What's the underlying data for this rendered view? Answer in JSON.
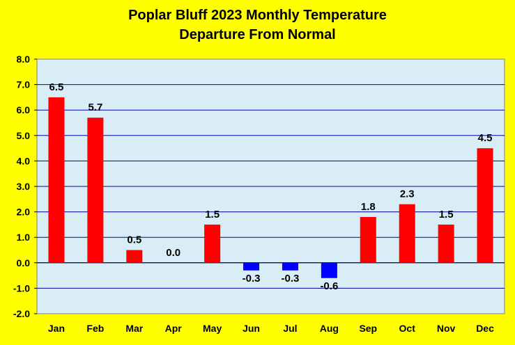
{
  "chart_data": {
    "type": "bar",
    "title": "Poplar Bluff 2023 Monthly Temperature",
    "subtitle": "Departure From Normal",
    "categories": [
      "Jan",
      "Feb",
      "Mar",
      "Apr",
      "May",
      "Jun",
      "Jul",
      "Aug",
      "Sep",
      "Oct",
      "Nov",
      "Dec"
    ],
    "values": [
      6.5,
      5.7,
      0.5,
      0.0,
      1.5,
      -0.3,
      -0.3,
      -0.6,
      1.8,
      2.3,
      1.5,
      4.5
    ],
    "ylim": [
      -2.0,
      8.0
    ],
    "yticks": [
      "-2.0",
      "-1.0",
      "0.0",
      "1.0",
      "2.0",
      "3.0",
      "4.0",
      "5.0",
      "6.0",
      "7.0",
      "8.0"
    ],
    "grid": true,
    "legend": "none",
    "colors": {
      "positive": "#ff0000",
      "negative": "#0000ff",
      "plot_background": "#d9edf7",
      "page_background": "#ffff00",
      "gridline": "#0000a0"
    }
  }
}
